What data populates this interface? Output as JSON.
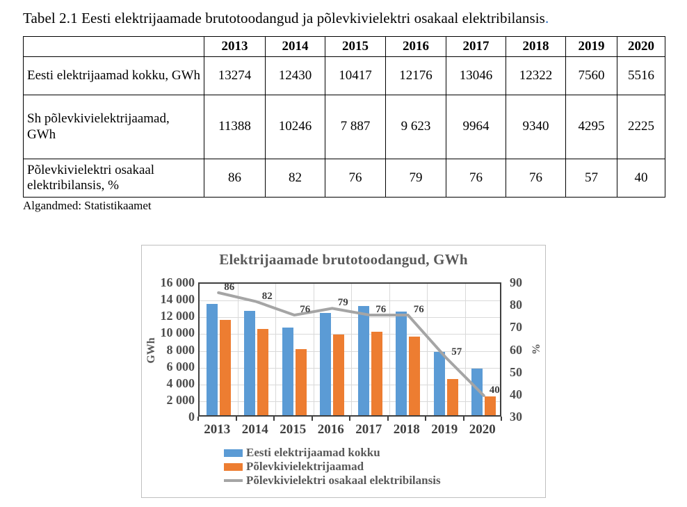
{
  "page": {
    "title_text": "Tabel 2.1 Eesti elektrijaamade brutotoodangud ja põlevkivielektri osakaal elektribilansis",
    "title_period": ".",
    "source_note": "Algandmed: Statistikaamet"
  },
  "colors": {
    "bar_total": "#5B9BD5",
    "bar_oilshale": "#ED7D31",
    "line_share": "#A5A5A5",
    "title_period_blue": "#2d6fc0"
  },
  "table": {
    "header": [
      "",
      "2013",
      "2014",
      "2015",
      "2016",
      "2017",
      "2018",
      "2019",
      "2020"
    ],
    "rows": [
      {
        "label": "Eesti elektrijaamad kokku, GWh",
        "values": [
          "13274",
          "12430",
          "10417",
          "12176",
          "13046",
          "12322",
          "7560",
          "5516"
        ]
      },
      {
        "label": "Sh põlevkivielektrijaamad, GWh",
        "values": [
          "11388",
          "10246",
          "7 887",
          "9 623",
          "9964",
          "9340",
          "4295",
          "2225"
        ]
      },
      {
        "label": "Põlevkivielektri osakaal elektribilansis, %",
        "values": [
          "86",
          "82",
          "76",
          "79",
          "76",
          "76",
          "57",
          "40"
        ]
      }
    ]
  },
  "chart_data": {
    "type": "bar",
    "title": "Elektrijaamade brutotoodangud, GWh",
    "categories": [
      "2013",
      "2014",
      "2015",
      "2016",
      "2017",
      "2018",
      "2019",
      "2020"
    ],
    "series": [
      {
        "name": "Eesti elektrijaamad kokku",
        "type": "bar",
        "axis": "left",
        "color": "#5B9BD5",
        "values": [
          13274,
          12430,
          10417,
          12176,
          13046,
          12322,
          7560,
          5516
        ]
      },
      {
        "name": "Põlevkivielektrijaamad",
        "type": "bar",
        "axis": "left",
        "color": "#ED7D31",
        "values": [
          11388,
          10246,
          7887,
          9623,
          9964,
          9340,
          4295,
          2225
        ]
      },
      {
        "name": "Põlevkivielektri osakaal elektribilansis",
        "type": "line",
        "axis": "right",
        "color": "#A5A5A5",
        "values": [
          86,
          82,
          76,
          79,
          76,
          76,
          57,
          40
        ],
        "data_labels": true
      }
    ],
    "y_left": {
      "label": "GWh",
      "min": 0,
      "max": 16000,
      "step": 2000,
      "tick_labels": [
        "16 000",
        "14 000",
        "12 000",
        "10 000",
        "8 000",
        "6 000",
        "4 000",
        "2 000",
        "0"
      ]
    },
    "y_right": {
      "label": "%",
      "min": 30,
      "max": 90,
      "step": 10,
      "tick_labels": [
        "90",
        "80",
        "70",
        "60",
        "50",
        "40",
        "30"
      ]
    },
    "grid": "horizontal-and-vertical",
    "legend_position": "bottom-left"
  }
}
